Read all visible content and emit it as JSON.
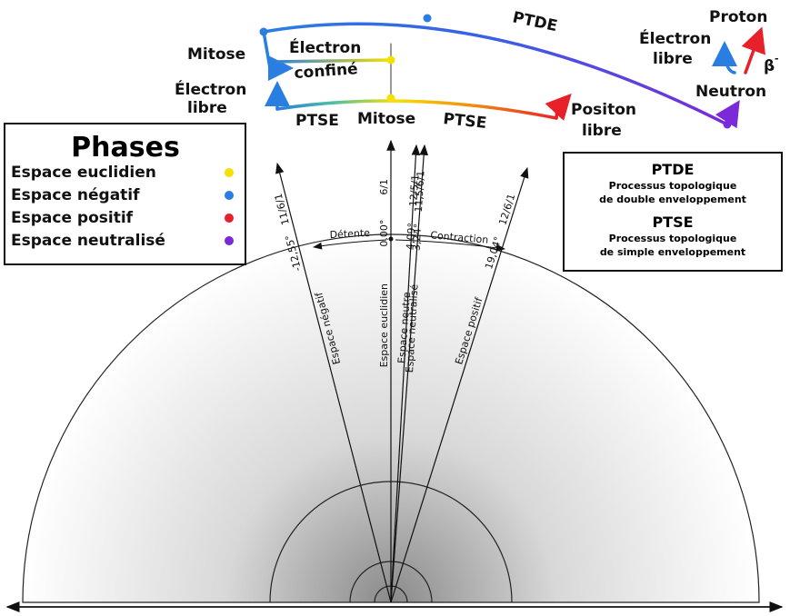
{
  "legend": {
    "title": "Phases",
    "items": [
      {
        "label": "Espace euclidien",
        "color": "#f5e000"
      },
      {
        "label": "Espace négatif",
        "color": "#2a7de1"
      },
      {
        "label": "Espace positif",
        "color": "#e8202a"
      },
      {
        "label": "Espace neutralisé",
        "color": "#7a2ad8"
      }
    ]
  },
  "info_box": {
    "items": [
      {
        "title": "PTDE",
        "lines": [
          "Processus topologique",
          "de double enveloppement"
        ]
      },
      {
        "title": "PTSE",
        "lines": [
          "Processus topologique",
          "de simple enveloppement"
        ]
      }
    ]
  },
  "process_labels": {
    "mitose_left": "Mitose",
    "electron_confine": [
      "Électron",
      "confiné"
    ],
    "electron_libre_left": [
      "Électron",
      "libre"
    ],
    "ptse_left": "PTSE",
    "mitose_center": "Mitose",
    "ptse_right": "PTSE",
    "positon_libre": [
      "Positon",
      "libre"
    ],
    "ptde": "PTDE",
    "electron_libre_right": [
      "Électron",
      "libre"
    ],
    "proton": "Proton",
    "beta": "β",
    "beta_sign": "-",
    "neutron": "Neutron"
  },
  "arc_labels": {
    "left": "Détente",
    "right": "Contraction"
  },
  "rays": [
    {
      "angle": "-12,55°",
      "ratio": "11/6/1",
      "space": "Espace négatif"
    },
    {
      "angle": "0,00°",
      "ratio": "6/1",
      "space": "Espace euclidien"
    },
    {
      "angle": "3,24°",
      "ratio": "11,5/6/1",
      "space": "Espace neutralisé"
    },
    {
      "angle": "4,09°",
      "ratio": "12/5/1",
      "space": "Espace neutre"
    },
    {
      "angle": "19,04°",
      "ratio": "12/6/1",
      "space": "Espace positif"
    }
  ]
}
